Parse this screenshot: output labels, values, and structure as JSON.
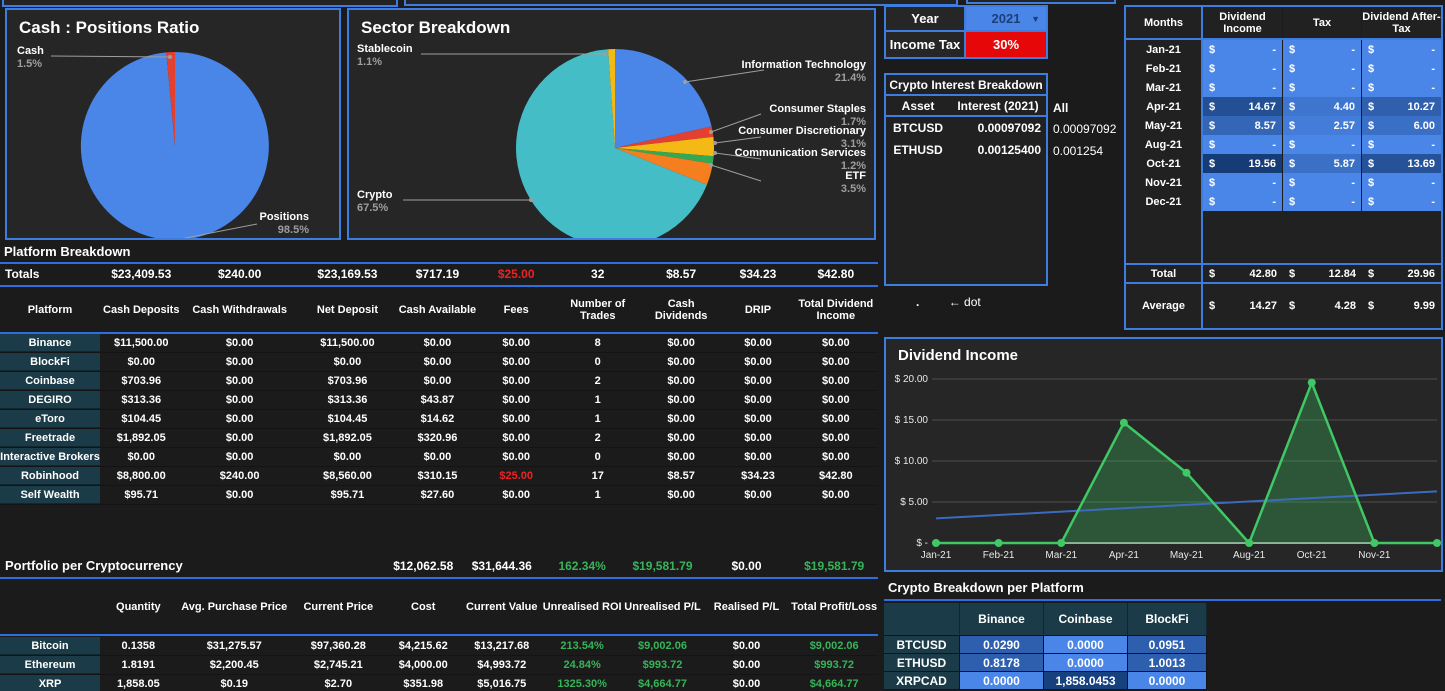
{
  "colors": {
    "accent_blue": "#3d7de0",
    "cell_blue": "#4a86e8",
    "cell_blue_dark": "#163c78",
    "teal_label": "#1a3b47",
    "alert_red": "#e60808",
    "negative_red_text": "#ee2222",
    "positive_green_text": "#35b558",
    "line_green": "#3fc864",
    "trend_blue": "#3a6bbf"
  },
  "year_selector": {
    "label": "Year",
    "value": "2021"
  },
  "income_tax": {
    "label": "Income Tax",
    "value": "30%"
  },
  "crypto_interest": {
    "title": "Crypto Interest Breakdown",
    "headers": [
      "Asset",
      "Interest (2021)"
    ],
    "rows": [
      [
        "BTCUSD",
        "0.00097092"
      ],
      [
        "ETHUSD",
        "0.00125400"
      ]
    ],
    "all_label": "All",
    "all_values": [
      "0.00097092",
      "0.001254"
    ]
  },
  "notes": {
    "dot": ".",
    "arrow": "← dot"
  },
  "months_table": {
    "headers": [
      "Months",
      "Dividend Income",
      "Tax",
      "Dividend After-Tax"
    ],
    "currency_symbol": "$",
    "empty_marker": "-",
    "max_value": 19.56,
    "rows": [
      {
        "month": "Jan-21",
        "income": null,
        "tax": null,
        "after": null
      },
      {
        "month": "Feb-21",
        "income": null,
        "tax": null,
        "after": null
      },
      {
        "month": "Mar-21",
        "income": null,
        "tax": null,
        "after": null
      },
      {
        "month": "Apr-21",
        "income": 14.67,
        "tax": 4.4,
        "after": 10.27
      },
      {
        "month": "May-21",
        "income": 8.57,
        "tax": 2.57,
        "after": 6.0
      },
      {
        "month": "Aug-21",
        "income": null,
        "tax": null,
        "after": null
      },
      {
        "month": "Oct-21",
        "income": 19.56,
        "tax": 5.87,
        "after": 13.69
      },
      {
        "month": "Nov-21",
        "income": null,
        "tax": null,
        "after": null
      },
      {
        "month": "Dec-21",
        "income": null,
        "tax": null,
        "after": null
      }
    ],
    "total": {
      "label": "Total",
      "values": [
        42.8,
        12.84,
        29.96
      ]
    },
    "average": {
      "label": "Average",
      "values": [
        14.27,
        4.28,
        9.99
      ]
    }
  },
  "platform_breakdown": {
    "title": "Platform Breakdown",
    "totals_label": "Totals",
    "totals": [
      "$23,409.53",
      "$240.00",
      "$23,169.53",
      "$717.19",
      "$25.00",
      "32",
      "$8.57",
      "$34.23",
      "$42.80"
    ],
    "headers": [
      "Platform",
      "Cash Deposits",
      "Cash Withdrawals",
      "Net Deposit",
      "Cash Available",
      "Fees",
      "Number of Trades",
      "Cash Dividends",
      "DRIP",
      "Total Dividend Income"
    ],
    "rows": [
      [
        "Binance",
        "$11,500.00",
        "$0.00",
        "$11,500.00",
        "$0.00",
        "$0.00",
        "8",
        "$0.00",
        "$0.00",
        "$0.00"
      ],
      [
        "BlockFi",
        "$0.00",
        "$0.00",
        "$0.00",
        "$0.00",
        "$0.00",
        "0",
        "$0.00",
        "$0.00",
        "$0.00"
      ],
      [
        "Coinbase",
        "$703.96",
        "$0.00",
        "$703.96",
        "$0.00",
        "$0.00",
        "2",
        "$0.00",
        "$0.00",
        "$0.00"
      ],
      [
        "DEGIRO",
        "$313.36",
        "$0.00",
        "$313.36",
        "$43.87",
        "$0.00",
        "1",
        "$0.00",
        "$0.00",
        "$0.00"
      ],
      [
        "eToro",
        "$104.45",
        "$0.00",
        "$104.45",
        "$14.62",
        "$0.00",
        "1",
        "$0.00",
        "$0.00",
        "$0.00"
      ],
      [
        "Freetrade",
        "$1,892.05",
        "$0.00",
        "$1,892.05",
        "$320.96",
        "$0.00",
        "2",
        "$0.00",
        "$0.00",
        "$0.00"
      ],
      [
        "Interactive Brokers",
        "$0.00",
        "$0.00",
        "$0.00",
        "$0.00",
        "$0.00",
        "0",
        "$0.00",
        "$0.00",
        "$0.00"
      ],
      [
        "Robinhood",
        "$8,800.00",
        "$240.00",
        "$8,560.00",
        "$310.15",
        "$25.00",
        "17",
        "$8.57",
        "$34.23",
        "$42.80"
      ],
      [
        "Self Wealth",
        "$95.71",
        "$0.00",
        "$95.71",
        "$27.60",
        "$0.00",
        "1",
        "$0.00",
        "$0.00",
        "$0.00"
      ]
    ],
    "red_fee_value": "$25.00"
  },
  "portfolio": {
    "title": "Portfolio per Cryptocurrency",
    "summary": [
      "$12,062.58",
      "$31,644.36",
      "162.34%",
      "$19,581.79",
      "$0.00",
      "$19,581.79"
    ],
    "summary_green_indices": [
      2,
      3,
      5
    ],
    "headers": [
      "",
      "Quantity",
      "Avg. Purchase Price",
      "Current Price",
      "Cost",
      "Current Value",
      "Unrealised ROI",
      "Unrealised P/L",
      "Realised P/L",
      "Total Profit/Loss"
    ],
    "green_columns": [
      6,
      7,
      9
    ],
    "rows": [
      [
        "Bitcoin",
        "0.1358",
        "$31,275.57",
        "$97,360.28",
        "$4,215.62",
        "$13,217.68",
        "213.54%",
        "$9,002.06",
        "$0.00",
        "$9,002.06"
      ],
      [
        "Ethereum",
        "1.8191",
        "$2,200.45",
        "$2,745.21",
        "$4,000.00",
        "$4,993.72",
        "24.84%",
        "$993.72",
        "$0.00",
        "$993.72"
      ],
      [
        "XRP",
        "1,858.05",
        "$0.19",
        "$2.70",
        "$351.98",
        "$5,016.75",
        "1325.30%",
        "$4,664.77",
        "$0.00",
        "$4,664.77"
      ]
    ]
  },
  "crypto_platform": {
    "title": "Crypto Breakdown per Platform",
    "headers": [
      "",
      "Binance",
      "Coinbase",
      "BlockFi"
    ],
    "rows": [
      [
        "BTCUSD",
        0.029,
        0.0,
        0.0951
      ],
      [
        "ETHUSD",
        0.8178,
        0.0,
        1.0013
      ],
      [
        "XRPCAD",
        0.0,
        1858.0453,
        0.0
      ]
    ]
  },
  "chart_data": [
    {
      "id": "cash_positions",
      "type": "pie",
      "title": "Cash : Positions Ratio",
      "slices": [
        {
          "label": "Positions",
          "pct": 98.5,
          "color": "#4a86e8"
        },
        {
          "label": "Cash",
          "pct": 1.5,
          "color": "#e3402f"
        }
      ]
    },
    {
      "id": "sector",
      "type": "pie",
      "title": "Sector Breakdown",
      "slices": [
        {
          "label": "Information Technology",
          "pct": 21.4,
          "color": "#4a86e8"
        },
        {
          "label": "Consumer Staples",
          "pct": 1.7,
          "color": "#e3402f"
        },
        {
          "label": "Consumer Discretionary",
          "pct": 3.1,
          "color": "#f5b915"
        },
        {
          "label": "Communication Services",
          "pct": 1.2,
          "color": "#34a853"
        },
        {
          "label": "ETF",
          "pct": 3.5,
          "color": "#f57f1f"
        },
        {
          "label": "Crypto",
          "pct": 67.5,
          "color": "#45bdc6"
        },
        {
          "label": "Stablecoin",
          "pct": 1.1,
          "color": "#f5b915"
        }
      ]
    },
    {
      "id": "dividend_income",
      "type": "area",
      "title": "Dividend Income",
      "x": [
        "Jan-21",
        "Feb-21",
        "Mar-21",
        "Apr-21",
        "May-21",
        "Aug-21",
        "Oct-21",
        "Nov-21",
        "Dec-21"
      ],
      "values": [
        0,
        0,
        0,
        14.67,
        8.57,
        0,
        19.56,
        0,
        0
      ],
      "hide_last_x_label": true,
      "ylim": [
        0,
        20
      ],
      "yticks": [
        0,
        5,
        10,
        15,
        20
      ],
      "ytick_labels": [
        "$ -",
        "$ 5.00",
        "$ 10.00",
        "$ 15.00",
        "$ 20.00"
      ],
      "trendline": {
        "start": 3.0,
        "end": 6.3
      },
      "grid": true,
      "legend": "none"
    }
  ]
}
